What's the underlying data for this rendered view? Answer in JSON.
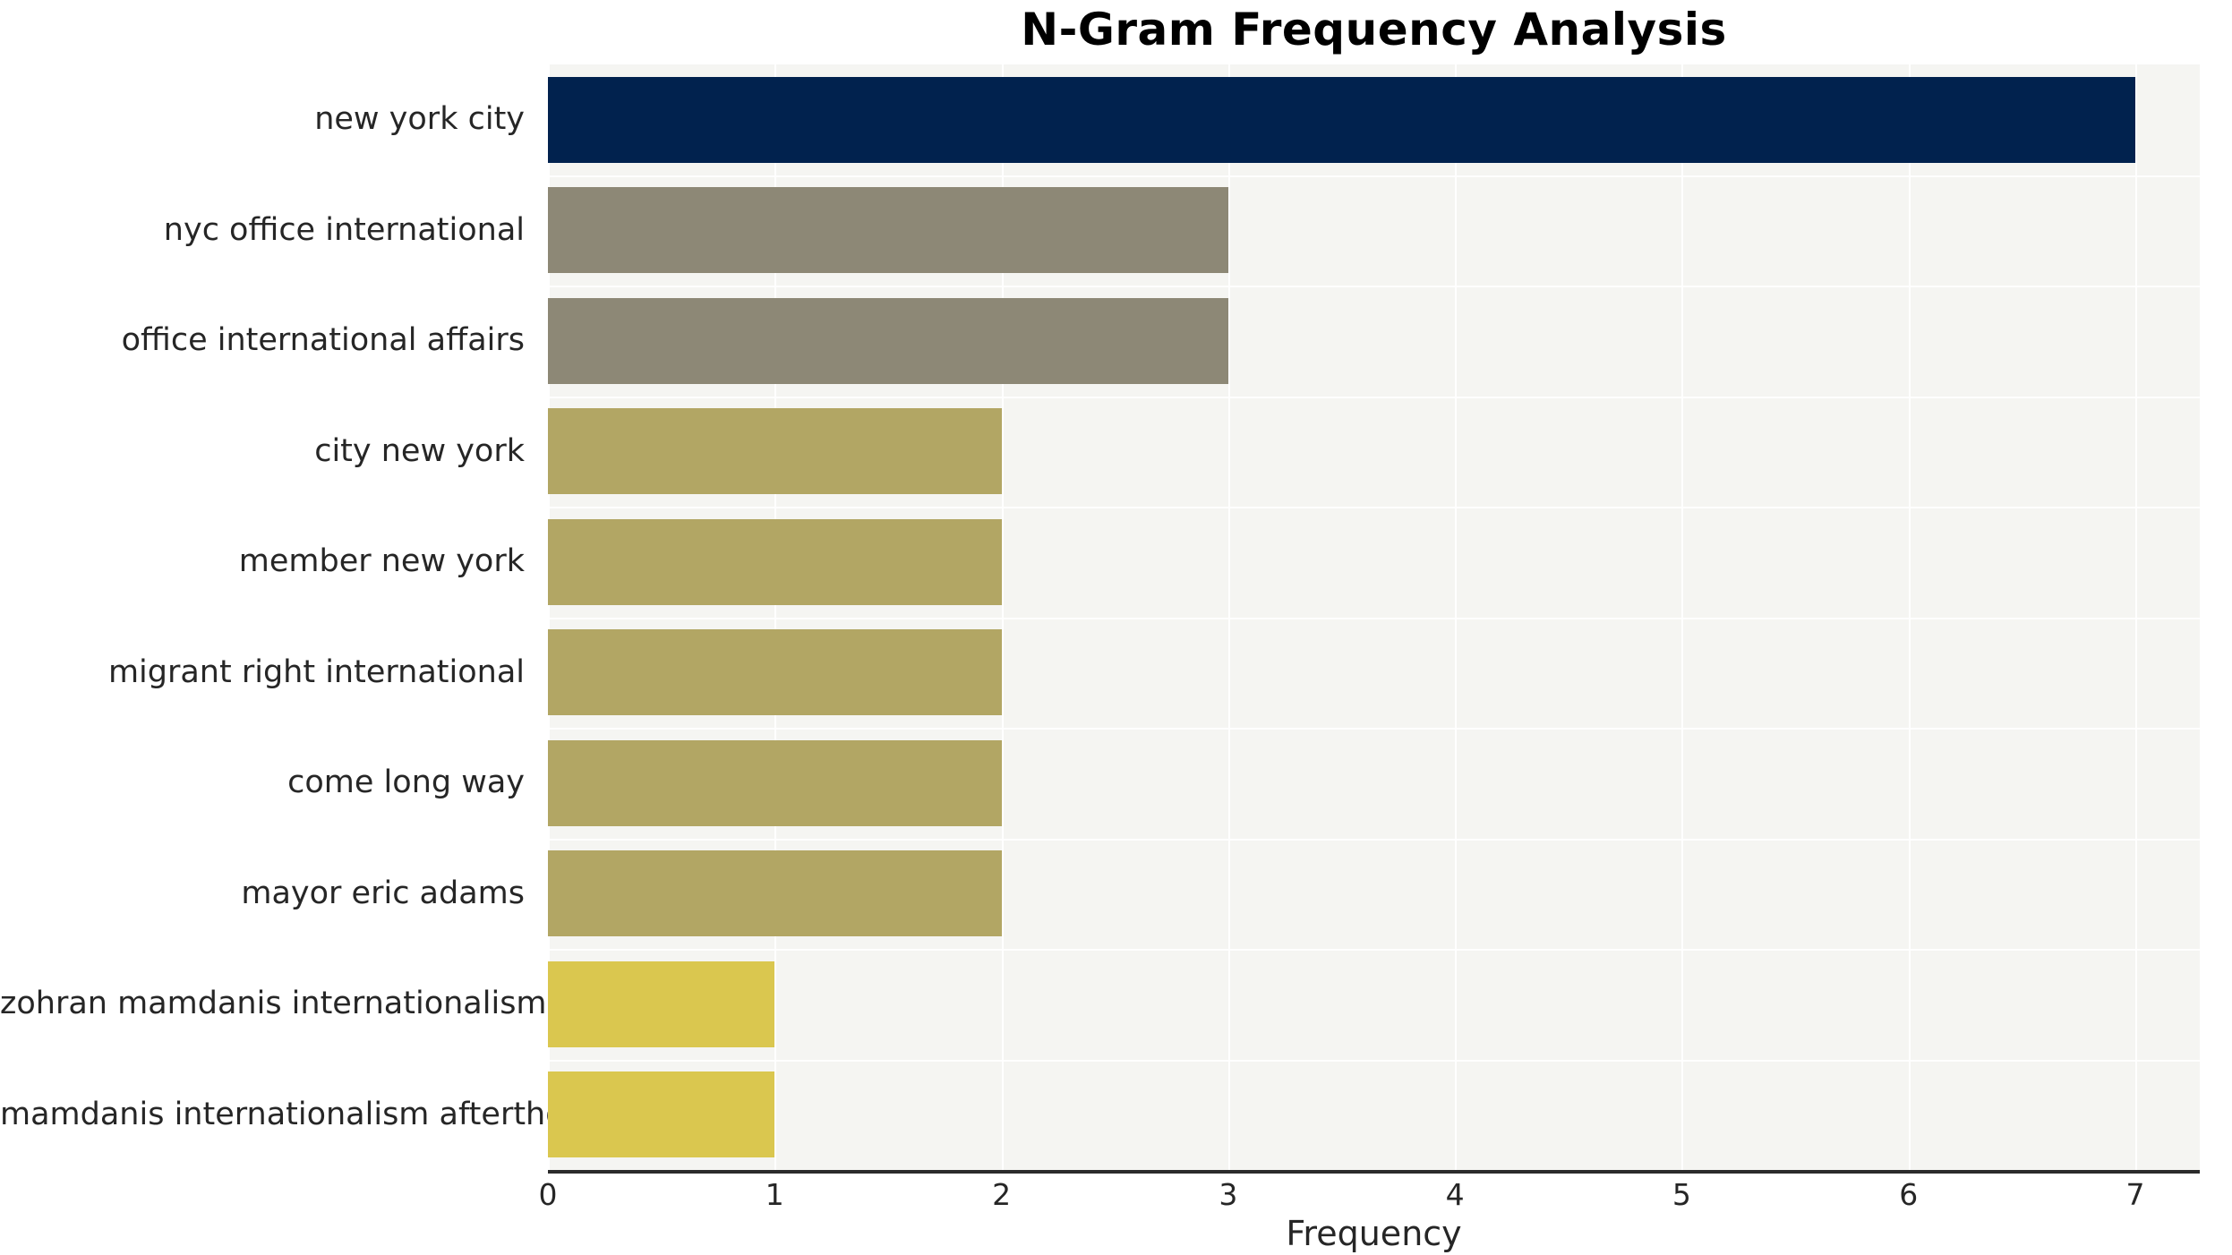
{
  "title": "N-Gram Frequency Analysis",
  "chart_data": {
    "type": "bar",
    "orientation": "horizontal",
    "title": "N-Gram Frequency Analysis",
    "categories": [
      "new york city",
      "nyc office international",
      "office international affairs",
      "city new york",
      "member new york",
      "migrant right international",
      "come long way",
      "mayor eric adams",
      "zohran mamdanis internationalism",
      "mamdanis internationalism afterthought"
    ],
    "values": [
      7,
      3,
      3,
      2,
      2,
      2,
      2,
      2,
      1,
      1
    ],
    "bar_colors": [
      "#01224e",
      "#8d8876",
      "#8d8876",
      "#b2a664",
      "#b2a664",
      "#b2a664",
      "#b2a664",
      "#b2a664",
      "#dac74f",
      "#dac74f"
    ],
    "xlabel": "Frequency",
    "xlim": [
      0,
      7
    ],
    "xticks": [
      0,
      1,
      2,
      3,
      4,
      5,
      6,
      7
    ],
    "legend": false,
    "grid": true,
    "plot_background": "#f5f5f2",
    "grid_color": "#ffffff",
    "axis_line_color": "#2b2b2b",
    "text_color": "#262626"
  }
}
